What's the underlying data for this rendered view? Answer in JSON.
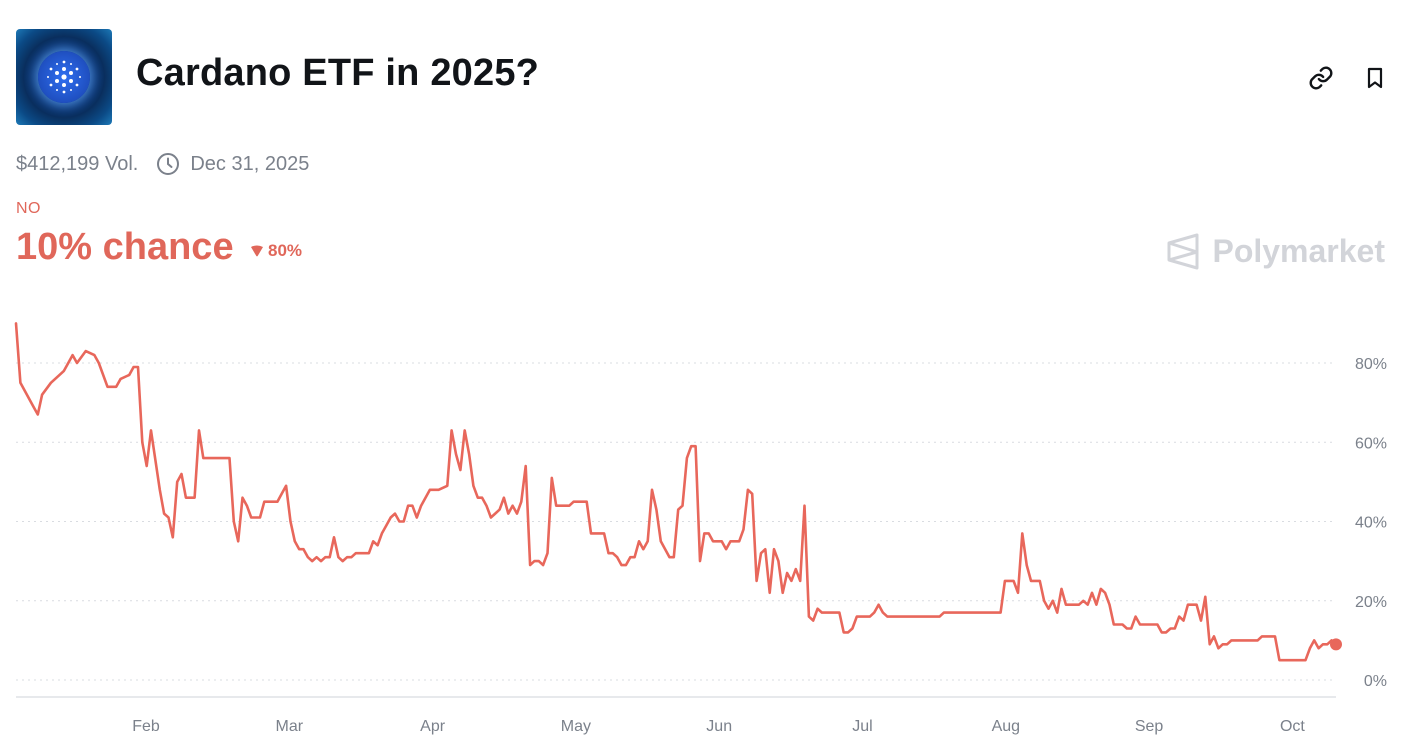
{
  "market": {
    "title": "Cardano ETF in 2025?",
    "volume": "$412,199 Vol.",
    "end_date": "Dec 31, 2025",
    "outcome": "NO",
    "chance": "10% chance",
    "change": "80%",
    "brand": "Polymarket"
  },
  "icons": {
    "link": "link-icon",
    "bookmark": "bookmark-icon",
    "clock": "clock-icon",
    "down": "triangle-down-icon",
    "logo": "polymarket-logo-icon"
  },
  "colors": {
    "line": "#e8675b",
    "accent": "#e0675a",
    "muted": "#7b818b",
    "brand": "#d2d4d9"
  },
  "chart_data": {
    "type": "line",
    "series": [
      {
        "values": [
          [
            0,
            90
          ],
          [
            1,
            75
          ],
          [
            4,
            69
          ],
          [
            5,
            67
          ],
          [
            6,
            72
          ],
          [
            8,
            75
          ],
          [
            11,
            78
          ],
          [
            13,
            82
          ],
          [
            14,
            80
          ],
          [
            16,
            83
          ],
          [
            18,
            82
          ],
          [
            19,
            80
          ],
          [
            21,
            74
          ],
          [
            23,
            74
          ],
          [
            24,
            76
          ],
          [
            26,
            77
          ],
          [
            27,
            79
          ],
          [
            28,
            79
          ],
          [
            29,
            60
          ],
          [
            30,
            54
          ],
          [
            31,
            63
          ],
          [
            33,
            48
          ],
          [
            34,
            42
          ],
          [
            35,
            41
          ],
          [
            36,
            36
          ],
          [
            37,
            50
          ],
          [
            38,
            52
          ],
          [
            39,
            46
          ],
          [
            40,
            46
          ],
          [
            41,
            46
          ],
          [
            42,
            63
          ],
          [
            43,
            56
          ],
          [
            44,
            56
          ],
          [
            49,
            56
          ],
          [
            50,
            40
          ],
          [
            51,
            35
          ],
          [
            52,
            46
          ],
          [
            53,
            44
          ],
          [
            54,
            41
          ],
          [
            55,
            41
          ],
          [
            56,
            41
          ],
          [
            57,
            45
          ],
          [
            58,
            45
          ],
          [
            60,
            45
          ],
          [
            61,
            47
          ],
          [
            62,
            49
          ],
          [
            63,
            40
          ],
          [
            64,
            35
          ],
          [
            65,
            33
          ],
          [
            66,
            33
          ],
          [
            67,
            31
          ],
          [
            68,
            30
          ],
          [
            69,
            31
          ],
          [
            70,
            30
          ],
          [
            71,
            31
          ],
          [
            72,
            31
          ],
          [
            73,
            36
          ],
          [
            74,
            31
          ],
          [
            75,
            30
          ],
          [
            76,
            31
          ],
          [
            77,
            31
          ],
          [
            78,
            32
          ],
          [
            79,
            32
          ],
          [
            80,
            32
          ],
          [
            81,
            32
          ],
          [
            82,
            35
          ],
          [
            83,
            34
          ],
          [
            84,
            37
          ],
          [
            85,
            39
          ],
          [
            86,
            41
          ],
          [
            87,
            42
          ],
          [
            88,
            40
          ],
          [
            89,
            40
          ],
          [
            90,
            44
          ],
          [
            91,
            44
          ],
          [
            92,
            41
          ],
          [
            93,
            44
          ],
          [
            94,
            46
          ],
          [
            95,
            48
          ],
          [
            97,
            48
          ],
          [
            99,
            49
          ],
          [
            100,
            63
          ],
          [
            101,
            57
          ],
          [
            102,
            53
          ],
          [
            103,
            63
          ],
          [
            104,
            57
          ],
          [
            105,
            49
          ],
          [
            106,
            46
          ],
          [
            107,
            46
          ],
          [
            108,
            44
          ],
          [
            109,
            41
          ],
          [
            110,
            42
          ],
          [
            111,
            43
          ],
          [
            112,
            46
          ],
          [
            113,
            42
          ],
          [
            114,
            44
          ],
          [
            115,
            42
          ],
          [
            116,
            45
          ],
          [
            117,
            54
          ],
          [
            118,
            29
          ],
          [
            119,
            30
          ],
          [
            120,
            30
          ],
          [
            121,
            29
          ],
          [
            122,
            32
          ],
          [
            123,
            51
          ],
          [
            124,
            44
          ],
          [
            127,
            44
          ],
          [
            128,
            45
          ],
          [
            130,
            45
          ],
          [
            131,
            45
          ],
          [
            132,
            37
          ],
          [
            133,
            37
          ],
          [
            135,
            37
          ],
          [
            136,
            32
          ],
          [
            137,
            32
          ],
          [
            138,
            31
          ],
          [
            139,
            29
          ],
          [
            140,
            29
          ],
          [
            141,
            31
          ],
          [
            142,
            31
          ],
          [
            143,
            35
          ],
          [
            144,
            33
          ],
          [
            145,
            35
          ],
          [
            146,
            48
          ],
          [
            147,
            43
          ],
          [
            148,
            35
          ],
          [
            150,
            31
          ],
          [
            151,
            31
          ],
          [
            152,
            43
          ],
          [
            153,
            44
          ],
          [
            154,
            56
          ],
          [
            155,
            59
          ],
          [
            156,
            59
          ],
          [
            157,
            30
          ],
          [
            158,
            37
          ],
          [
            159,
            37
          ],
          [
            160,
            35
          ],
          [
            161,
            35
          ],
          [
            162,
            35
          ],
          [
            163,
            33
          ],
          [
            164,
            35
          ],
          [
            166,
            35
          ],
          [
            167,
            38
          ],
          [
            168,
            48
          ],
          [
            169,
            47
          ],
          [
            170,
            25
          ],
          [
            171,
            32
          ],
          [
            172,
            33
          ],
          [
            173,
            22
          ],
          [
            174,
            33
          ],
          [
            175,
            30
          ],
          [
            176,
            22
          ],
          [
            177,
            27
          ],
          [
            178,
            25
          ],
          [
            179,
            28
          ],
          [
            180,
            25
          ],
          [
            181,
            44
          ],
          [
            182,
            16
          ],
          [
            183,
            15
          ],
          [
            184,
            18
          ],
          [
            185,
            17
          ],
          [
            186,
            17
          ],
          [
            187,
            17
          ],
          [
            188,
            17
          ],
          [
            189,
            17
          ],
          [
            190,
            12
          ],
          [
            191,
            12
          ],
          [
            192,
            13
          ],
          [
            193,
            16
          ],
          [
            194,
            16
          ],
          [
            195,
            16
          ],
          [
            196,
            16
          ],
          [
            197,
            17
          ],
          [
            198,
            19
          ],
          [
            199,
            17
          ],
          [
            200,
            16
          ],
          [
            212,
            16
          ],
          [
            213,
            17
          ],
          [
            226,
            17
          ],
          [
            227,
            25
          ],
          [
            228,
            25
          ],
          [
            229,
            25
          ],
          [
            230,
            22
          ],
          [
            231,
            37
          ],
          [
            232,
            29
          ],
          [
            233,
            25
          ],
          [
            235,
            25
          ],
          [
            236,
            20
          ],
          [
            237,
            18
          ],
          [
            238,
            20
          ],
          [
            239,
            17
          ],
          [
            240,
            23
          ],
          [
            241,
            19
          ],
          [
            242,
            19
          ],
          [
            244,
            19
          ],
          [
            245,
            20
          ],
          [
            246,
            19
          ],
          [
            247,
            22
          ],
          [
            248,
            19
          ],
          [
            249,
            23
          ],
          [
            250,
            22
          ],
          [
            251,
            19
          ],
          [
            252,
            14
          ],
          [
            253,
            14
          ],
          [
            254,
            14
          ],
          [
            255,
            13
          ],
          [
            256,
            13
          ],
          [
            257,
            16
          ],
          [
            258,
            14
          ],
          [
            262,
            14
          ],
          [
            263,
            12
          ],
          [
            264,
            12
          ],
          [
            265,
            13
          ],
          [
            266,
            13
          ],
          [
            267,
            16
          ],
          [
            268,
            15
          ],
          [
            269,
            19
          ],
          [
            270,
            19
          ],
          [
            271,
            19
          ],
          [
            272,
            15
          ],
          [
            273,
            21
          ],
          [
            274,
            9
          ],
          [
            275,
            11
          ],
          [
            276,
            8
          ],
          [
            277,
            9
          ],
          [
            278,
            9
          ],
          [
            279,
            10
          ],
          [
            285,
            10
          ],
          [
            286,
            11
          ],
          [
            289,
            11
          ],
          [
            290,
            5
          ],
          [
            296,
            5
          ],
          [
            297,
            8
          ],
          [
            298,
            10
          ],
          [
            299,
            8
          ],
          [
            300,
            9
          ],
          [
            301,
            9
          ],
          [
            302,
            10
          ],
          [
            303,
            9
          ]
        ]
      }
    ],
    "x_ticks": [
      "Feb",
      "Mar",
      "Apr",
      "May",
      "Jun",
      "Jul",
      "Aug",
      "Sep",
      "Oct"
    ],
    "y_ticks": [
      "80%",
      "60%",
      "40%",
      "20%",
      "0%"
    ],
    "ylim": [
      0,
      90
    ],
    "grid": "dotted horizontal"
  }
}
